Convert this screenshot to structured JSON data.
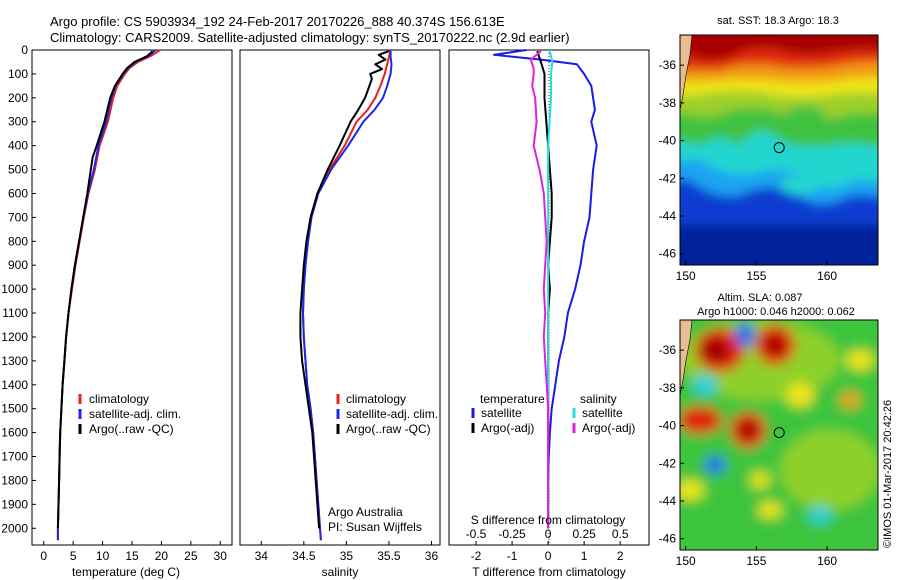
{
  "header": {
    "line1": "Argo profile: CS 5903934_192 24-Feb-2017 20170226_888 40.374S 156.613E",
    "line2": "Climatology: CARS2009. Satellite-adjusted climatology: synTS_20170222.nc (2.9d earlier)"
  },
  "colors": {
    "climatology": "#e8201c",
    "satellite": "#1c28e8",
    "argo": "#000000",
    "temp_satellite": "#1a1ae6",
    "sal_satellite": "#22e0e0",
    "sal_argo": "#e020e0"
  },
  "depth_axis": {
    "ylim": [
      0,
      2070
    ],
    "ticks": [
      "0",
      "100",
      "200",
      "300",
      "400",
      "500",
      "600",
      "700",
      "800",
      "900",
      "1000",
      "1100",
      "1200",
      "1300",
      "1400",
      "1500",
      "1600",
      "1700",
      "1800",
      "1900",
      "2000"
    ]
  },
  "chart_data": [
    {
      "type": "line",
      "name": "temperature-profile",
      "xlabel": "temperature (deg C)",
      "xlim": [
        -2,
        32
      ],
      "xticks": [
        "0",
        "5",
        "10",
        "15",
        "20",
        "25",
        "30"
      ],
      "legend": [
        "climatology",
        "satellite-adj. clim.",
        "Argo(..raw -QC)"
      ],
      "series": [
        {
          "name": "climatology",
          "depth": [
            0,
            25,
            50,
            75,
            100,
            150,
            200,
            300,
            400,
            500,
            600,
            700,
            800,
            900,
            1000,
            1100,
            1200,
            1300,
            1400,
            1500,
            1600,
            1700,
            1800,
            1900,
            2000,
            2050
          ],
          "values": [
            19.8,
            18.2,
            16.0,
            14.6,
            13.8,
            12.5,
            11.8,
            10.9,
            9.5,
            8.7,
            7.6,
            6.8,
            6.1,
            5.4,
            4.8,
            4.2,
            3.8,
            3.5,
            3.2,
            3.0,
            2.8,
            2.7,
            2.6,
            2.5,
            2.4,
            2.4
          ]
        },
        {
          "name": "satellite-adj. clim.",
          "depth": [
            0,
            25,
            50,
            75,
            100,
            150,
            200,
            300,
            400,
            500,
            600,
            700,
            800,
            900,
            1000,
            1100,
            1200,
            1300,
            1400,
            1500,
            1600,
            1700,
            1800,
            1900,
            2000,
            2050
          ],
          "values": [
            19.0,
            17.8,
            15.6,
            14.4,
            13.5,
            12.2,
            11.5,
            10.6,
            9.3,
            8.5,
            7.5,
            6.7,
            6.0,
            5.3,
            4.7,
            4.2,
            3.8,
            3.5,
            3.2,
            3.0,
            2.8,
            2.7,
            2.6,
            2.5,
            2.4,
            2.4
          ]
        },
        {
          "name": "Argo(..raw -QC)",
          "depth": [
            5,
            25,
            50,
            75,
            100,
            150,
            200,
            300,
            400,
            450,
            500,
            600,
            700,
            800,
            900,
            1000,
            1100,
            1200,
            1300,
            1400,
            1500,
            1600,
            1700,
            1800,
            1900,
            2000
          ],
          "values": [
            18.5,
            17.6,
            15.4,
            14.2,
            13.4,
            12.1,
            11.3,
            10.3,
            9.0,
            8.3,
            8.0,
            7.4,
            6.7,
            6.0,
            5.3,
            4.7,
            4.2,
            3.8,
            3.5,
            3.2,
            3.0,
            2.8,
            2.7,
            2.6,
            2.5,
            2.4
          ]
        }
      ]
    },
    {
      "type": "line",
      "name": "salinity-profile",
      "xlabel": "salinity",
      "xlim": [
        33.75,
        36.1
      ],
      "xticks": [
        "34",
        "34.5",
        "35",
        "35.5",
        "36"
      ],
      "legend": [
        "climatology",
        "satellite-adj. clim.",
        "Argo(..raw -QC)"
      ],
      "annotation": [
        "Argo Australia",
        "PI: Susan Wijffels"
      ],
      "series": [
        {
          "name": "climatology",
          "depth": [
            0,
            30,
            60,
            100,
            150,
            200,
            250,
            300,
            400,
            500,
            600,
            700,
            800,
            900,
            1000,
            1100,
            1200,
            1300,
            1400,
            1500,
            1600,
            1700,
            1800,
            1900,
            2000,
            2050
          ],
          "values": [
            35.52,
            35.5,
            35.48,
            35.45,
            35.4,
            35.34,
            35.25,
            35.12,
            34.98,
            34.8,
            34.66,
            34.58,
            34.54,
            34.52,
            34.5,
            34.49,
            34.5,
            34.52,
            34.54,
            34.58,
            34.61,
            34.63,
            34.65,
            34.67,
            34.69,
            34.7
          ]
        },
        {
          "name": "satellite-adj. clim.",
          "depth": [
            0,
            30,
            60,
            100,
            150,
            200,
            250,
            300,
            400,
            500,
            600,
            700,
            800,
            900,
            1000,
            1100,
            1200,
            1300,
            1400,
            1500,
            1600,
            1700,
            1800,
            1900,
            2000,
            2050
          ],
          "values": [
            35.52,
            35.52,
            35.53,
            35.52,
            35.48,
            35.43,
            35.33,
            35.2,
            35.02,
            34.82,
            34.67,
            34.59,
            34.55,
            34.52,
            34.5,
            34.49,
            34.5,
            34.52,
            34.54,
            34.58,
            34.61,
            34.63,
            34.65,
            34.67,
            34.69,
            34.7
          ]
        },
        {
          "name": "Argo(..raw -QC)",
          "depth": [
            5,
            20,
            40,
            60,
            80,
            100,
            120,
            150,
            200,
            250,
            300,
            400,
            500,
            600,
            700,
            800,
            900,
            1000,
            1100,
            1200,
            1300,
            1400,
            1500,
            1600,
            1700,
            1800,
            1900,
            2000
          ],
          "values": [
            35.5,
            35.38,
            35.46,
            35.34,
            35.42,
            35.28,
            35.3,
            35.27,
            35.22,
            35.14,
            35.05,
            34.92,
            34.78,
            34.66,
            34.58,
            34.53,
            34.5,
            34.48,
            34.46,
            34.46,
            34.48,
            34.52,
            34.56,
            34.6,
            34.62,
            34.64,
            34.66,
            34.68
          ]
        }
      ]
    },
    {
      "type": "line",
      "name": "difference-profile",
      "xlabel": "T difference from climatology",
      "xlim": [
        -2.75,
        2.8
      ],
      "xticks": [
        "-2",
        "-1",
        "0",
        "1",
        "2"
      ],
      "top_label": "S difference from climatology",
      "top_ticks": [
        "-0.5",
        "-0.25",
        "0",
        "0.25",
        "0.5"
      ],
      "legend": {
        "temperature_header": "temperature",
        "salinity_header": "salinity",
        "temperature": [
          "satellite",
          "Argo(-adj)"
        ],
        "salinity": [
          "satellite",
          "Argo(-adj)"
        ]
      },
      "series": [
        {
          "name": "temperature satellite",
          "depth": [
            0,
            20,
            40,
            60,
            80,
            100,
            150,
            200,
            250,
            300,
            400,
            500,
            600,
            700,
            800,
            900,
            1000,
            1100,
            1200,
            1300,
            1400,
            1500,
            1600,
            1700,
            1800,
            1900,
            2000
          ],
          "values": [
            -0.6,
            -1.5,
            -0.2,
            0.8,
            0.9,
            1.0,
            1.2,
            1.25,
            1.3,
            1.2,
            1.35,
            1.25,
            1.2,
            1.15,
            1.0,
            0.9,
            0.75,
            0.55,
            0.45,
            0.3,
            0.2,
            0.1,
            0.05,
            0.02,
            0.0,
            0.0,
            0.0
          ]
        },
        {
          "name": "temperature Argo(-adj)",
          "depth": [
            5,
            50,
            100,
            200,
            300,
            400,
            500,
            600,
            700,
            800,
            900,
            1000,
            1100,
            1200,
            1300,
            1400,
            1500,
            1600,
            1700,
            1800,
            1900,
            2000
          ],
          "values": [
            -0.3,
            -0.2,
            -0.1,
            -0.1,
            -0.05,
            0.0,
            0.05,
            0.1,
            0.1,
            0.05,
            0.0,
            0.05,
            0.0,
            0.0,
            0.0,
            0.0,
            0.0,
            0.0,
            0.0,
            0.0,
            0.0,
            0.0
          ]
        },
        {
          "name": "salinity satellite",
          "depth": [
            0,
            50,
            100,
            200,
            300,
            400,
            500,
            600,
            700,
            800,
            900,
            1000,
            1200,
            1400,
            1600,
            1800,
            2000
          ],
          "values": [
            0.01,
            0.03,
            0.02,
            0.02,
            0.01,
            0.0,
            0.0,
            0.0,
            0.0,
            0.0,
            0.0,
            0.0,
            0.0,
            0.0,
            0.0,
            0.0,
            0.0
          ]
        },
        {
          "name": "salinity Argo(-adj)",
          "depth": [
            5,
            40,
            80,
            100,
            150,
            200,
            300,
            400,
            500,
            600,
            700,
            800,
            900,
            1000,
            1100,
            1200,
            1300,
            1400,
            1500,
            1600,
            1800,
            2000
          ],
          "values": [
            -0.05,
            -0.12,
            -0.1,
            -0.1,
            -0.11,
            -0.09,
            -0.08,
            -0.1,
            -0.06,
            -0.03,
            -0.02,
            -0.01,
            -0.02,
            -0.03,
            -0.02,
            -0.03,
            -0.02,
            -0.01,
            0.0,
            0.0,
            0.0,
            0.0
          ]
        }
      ]
    },
    {
      "type": "heatmap",
      "name": "sst-map",
      "title": "sat. SST: 18.3  Argo: 18.3",
      "xticks": [
        "150",
        "155",
        "160"
      ],
      "yticks": [
        "-36",
        "-38",
        "-40",
        "-42",
        "-44",
        "-46"
      ],
      "xlim": [
        149.6,
        163.6
      ],
      "ylim": [
        -46.6,
        -34.4
      ],
      "marker": {
        "lon": 156.613,
        "lat": -40.374
      }
    },
    {
      "type": "heatmap",
      "name": "sla-map",
      "title": "Altim. SLA: 0.087",
      "subtitle": "Argo h1000: 0.046 h2000: 0.062",
      "xticks": [
        "150",
        "155",
        "160"
      ],
      "yticks": [
        "-36",
        "-38",
        "-40",
        "-42",
        "-44",
        "-46"
      ],
      "xlim": [
        149.6,
        163.6
      ],
      "ylim": [
        -46.6,
        -34.4
      ],
      "marker": {
        "lon": 156.613,
        "lat": -40.374
      }
    }
  ],
  "watermark": "©IMOS 01-Mar-2017 20:42:26"
}
